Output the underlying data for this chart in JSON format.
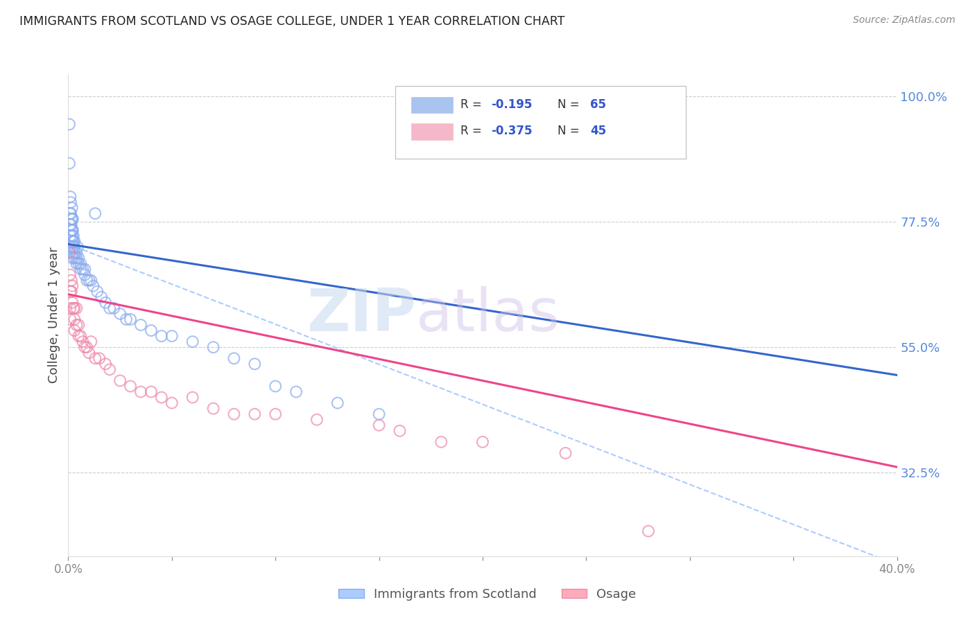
{
  "title": "IMMIGRANTS FROM SCOTLAND VS OSAGE COLLEGE, UNDER 1 YEAR CORRELATION CHART",
  "source": "Source: ZipAtlas.com",
  "ylabel": "College, Under 1 year",
  "right_ytick_labels": [
    "100.0%",
    "77.5%",
    "55.0%",
    "32.5%"
  ],
  "right_ytick_values": [
    1.0,
    0.775,
    0.55,
    0.325
  ],
  "legend_entries": [
    {
      "label_R": "R = ",
      "label_Rval": "-0.195",
      "label_N": "  N = ",
      "label_Nval": "65",
      "color": "#aac4f0"
    },
    {
      "label_R": "R = ",
      "label_Rval": "-0.375",
      "label_N": "  N = ",
      "label_Nval": "45",
      "color": "#f5b8c8"
    }
  ],
  "legend_labels_bottom": [
    "Immigrants from Scotland",
    "Osage"
  ],
  "watermark_zip": "ZIP",
  "watermark_atlas": "atlas",
  "blue_scatter_x": [
    0.0005,
    0.0005,
    0.0008,
    0.001,
    0.001,
    0.001,
    0.001,
    0.001,
    0.0012,
    0.0012,
    0.0015,
    0.0015,
    0.0015,
    0.0018,
    0.0018,
    0.002,
    0.002,
    0.002,
    0.002,
    0.002,
    0.002,
    0.0022,
    0.0022,
    0.0025,
    0.0025,
    0.003,
    0.003,
    0.003,
    0.003,
    0.004,
    0.004,
    0.004,
    0.0045,
    0.005,
    0.005,
    0.006,
    0.006,
    0.007,
    0.008,
    0.008,
    0.009,
    0.01,
    0.011,
    0.012,
    0.013,
    0.014,
    0.016,
    0.018,
    0.02,
    0.022,
    0.025,
    0.028,
    0.03,
    0.035,
    0.04,
    0.045,
    0.05,
    0.06,
    0.07,
    0.08,
    0.09,
    0.1,
    0.11,
    0.13,
    0.15
  ],
  "blue_scatter_y": [
    0.95,
    0.88,
    0.72,
    0.82,
    0.79,
    0.77,
    0.75,
    0.73,
    0.81,
    0.79,
    0.78,
    0.77,
    0.76,
    0.8,
    0.78,
    0.76,
    0.75,
    0.74,
    0.73,
    0.72,
    0.71,
    0.78,
    0.76,
    0.75,
    0.74,
    0.74,
    0.73,
    0.72,
    0.71,
    0.72,
    0.71,
    0.7,
    0.73,
    0.71,
    0.7,
    0.7,
    0.69,
    0.69,
    0.69,
    0.68,
    0.67,
    0.67,
    0.67,
    0.66,
    0.79,
    0.65,
    0.64,
    0.63,
    0.62,
    0.62,
    0.61,
    0.6,
    0.6,
    0.59,
    0.58,
    0.57,
    0.57,
    0.56,
    0.55,
    0.53,
    0.52,
    0.48,
    0.47,
    0.45,
    0.43
  ],
  "pink_scatter_x": [
    0.0005,
    0.0008,
    0.001,
    0.001,
    0.001,
    0.0015,
    0.0015,
    0.002,
    0.002,
    0.0025,
    0.003,
    0.003,
    0.003,
    0.004,
    0.004,
    0.005,
    0.005,
    0.006,
    0.007,
    0.008,
    0.009,
    0.01,
    0.011,
    0.013,
    0.015,
    0.018,
    0.02,
    0.025,
    0.03,
    0.035,
    0.04,
    0.045,
    0.05,
    0.06,
    0.07,
    0.08,
    0.09,
    0.1,
    0.12,
    0.15,
    0.16,
    0.18,
    0.2,
    0.24,
    0.28
  ],
  "pink_scatter_y": [
    0.72,
    0.68,
    0.65,
    0.62,
    0.6,
    0.67,
    0.65,
    0.66,
    0.63,
    0.62,
    0.62,
    0.6,
    0.58,
    0.62,
    0.59,
    0.59,
    0.57,
    0.57,
    0.56,
    0.55,
    0.55,
    0.54,
    0.56,
    0.53,
    0.53,
    0.52,
    0.51,
    0.49,
    0.48,
    0.47,
    0.47,
    0.46,
    0.45,
    0.46,
    0.44,
    0.43,
    0.43,
    0.43,
    0.42,
    0.41,
    0.4,
    0.38,
    0.38,
    0.36,
    0.22
  ],
  "xmin": 0.0,
  "xmax": 0.4,
  "ymin": 0.175,
  "ymax": 1.04,
  "blue_line_x0": 0.0,
  "blue_line_x1": 0.4,
  "blue_line_y0": 0.735,
  "blue_line_y1": 0.5,
  "pink_line_x0": 0.0,
  "pink_line_x1": 0.4,
  "pink_line_y0": 0.645,
  "pink_line_y1": 0.335,
  "dash_line_x0": 0.0,
  "dash_line_x1": 0.4,
  "dash_line_y0": 0.735,
  "dash_line_y1": 0.16
}
